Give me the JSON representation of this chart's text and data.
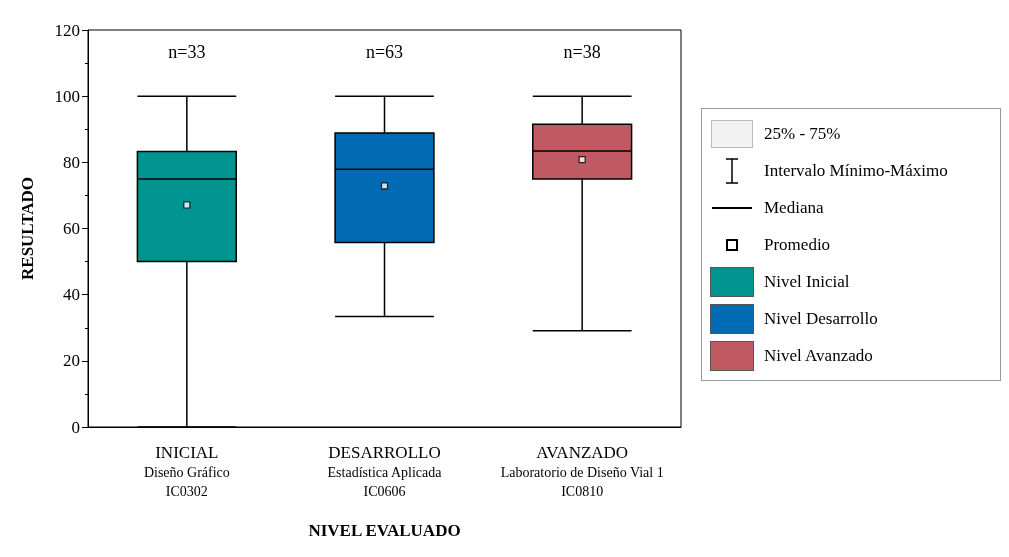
{
  "chart_data": {
    "type": "box",
    "xlabel": "NIVEL EVALUADO",
    "ylabel": "RESULTADO",
    "categories": [
      "INICIAL\nDiseño Gráfico\nIC0302",
      "DESARROLLO\nEstadística Aplicada\nIC0606",
      "AVANZADO\nLaboratorio de Diseño Vial 1\nIC0810"
    ],
    "series": [
      {
        "name": "Nivel Inicial",
        "color": "#009490",
        "boxes": [
          {
            "low": 0,
            "q1": 50,
            "median": 75,
            "q3": 83.3,
            "high": 100,
            "mean": 67.1
          },
          null,
          null
        ]
      },
      {
        "name": "Nivel Desarrollo",
        "color": "#006bb2",
        "boxes": [
          null,
          {
            "low": 33.4,
            "q1": 55.8,
            "median": 77.9,
            "q3": 88.9,
            "high": 100,
            "mean": 72.9
          },
          null
        ]
      },
      {
        "name": "Nivel Avanzado",
        "color": "#c05a62",
        "boxes": [
          null,
          null,
          {
            "low": 29.1,
            "q1": 75,
            "median": 83.4,
            "q3": 91.5,
            "high": 100,
            "mean": 80.8
          }
        ]
      }
    ],
    "ylim": [
      0,
      120
    ],
    "yticks": [
      0,
      20,
      40,
      60,
      80,
      100,
      120
    ],
    "grid": false,
    "legend": "right",
    "marker": "square",
    "annotations": [
      "n=33",
      "n=63",
      "n=38",
      "25% - 75%",
      "Intervalo Mínimo-Máximo",
      "Mediana",
      "Promedio"
    ]
  }
}
